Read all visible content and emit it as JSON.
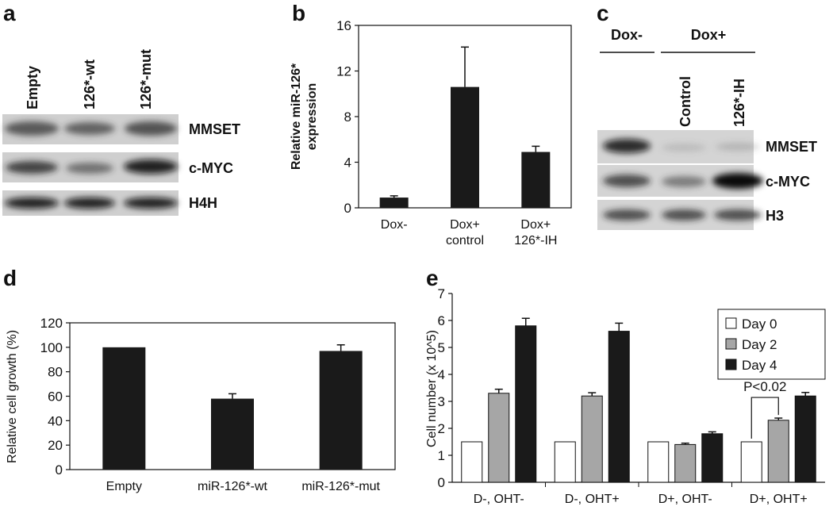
{
  "chart_data": [
    {
      "type": "bar",
      "panel": "b",
      "ylabel": "Relative miR-126* expression",
      "categories": [
        "Dox-",
        "Dox+ control",
        "Dox+ 126*-IH"
      ],
      "values": [
        0.9,
        10.6,
        4.9
      ],
      "errors": [
        0.15,
        3.5,
        0.5
      ],
      "color": "#1a1a1a",
      "ylim": [
        0,
        16
      ],
      "yticks": [
        0,
        4,
        8,
        12,
        16
      ],
      "grid": false
    },
    {
      "type": "bar",
      "panel": "d",
      "ylabel": "Relative cell growth (%)",
      "categories": [
        "Empty",
        "miR-126*-wt",
        "miR-126*-mut"
      ],
      "values": [
        100,
        58,
        97
      ],
      "errors": [
        0,
        4,
        5
      ],
      "color": "#1a1a1a",
      "ylim": [
        0,
        120
      ],
      "yticks": [
        0,
        20,
        40,
        60,
        80,
        100,
        120
      ],
      "grid": false
    },
    {
      "type": "grouped-bar",
      "panel": "e",
      "ylabel": "Cell number (x 10^5)",
      "categories": [
        "D-, OHT-",
        "D-, OHT+",
        "D+, OHT-",
        "D+, OHT+"
      ],
      "series": [
        {
          "name": "Day 0",
          "color": "#ffffff",
          "values": [
            1.5,
            1.5,
            1.5,
            1.5
          ],
          "errors": [
            0,
            0,
            0,
            0
          ]
        },
        {
          "name": "Day 2",
          "color": "#a6a6a6",
          "values": [
            3.3,
            3.2,
            1.4,
            2.3
          ],
          "errors": [
            0.15,
            0.12,
            0.05,
            0.08
          ]
        },
        {
          "name": "Day 4",
          "color": "#1a1a1a",
          "values": [
            5.8,
            5.6,
            1.8,
            3.2
          ],
          "errors": [
            0.28,
            0.3,
            0.07,
            0.13
          ]
        }
      ],
      "ylim": [
        0,
        7
      ],
      "yticks": [
        0,
        1,
        2,
        3,
        4,
        5,
        6,
        7
      ],
      "grid": false,
      "legend": "top-right",
      "annotation": "P<0.02"
    }
  ],
  "blots": [
    {
      "panel": "a",
      "lanes": [
        "Empty",
        "126*-wt",
        "126*-mut"
      ],
      "rows": [
        "MMSET",
        "c-MYC",
        "H4H"
      ]
    },
    {
      "panel": "c",
      "groups": [
        "Dox-",
        "Dox+"
      ],
      "lanes": [
        "Control",
        "126*-IH"
      ],
      "rows": [
        "MMSET",
        "c-MYC",
        "H3"
      ]
    }
  ]
}
